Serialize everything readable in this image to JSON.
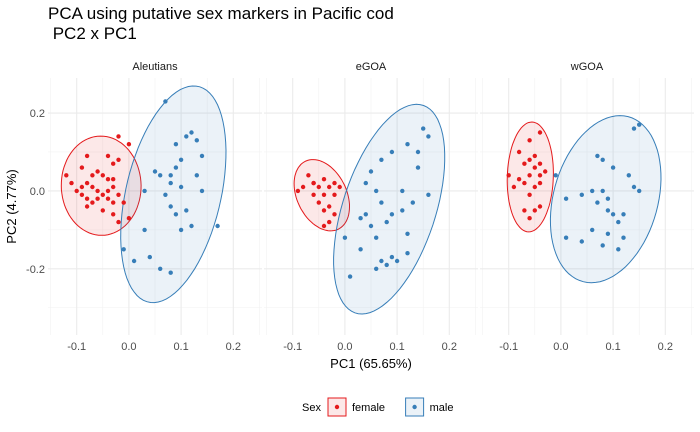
{
  "title": "PCA using putative sex markers in Pacific cod\n PC2 x PC1",
  "chart_data": {
    "type": "scatter",
    "title": "PCA using putative sex markers in Pacific cod\n PC2 x PC1",
    "xlabel": "PC1 (65.65%)",
    "ylabel": "PC2 (4.77%)",
    "xlim": [
      -0.155,
      0.255
    ],
    "ylim": [
      -0.37,
      0.29
    ],
    "x_ticks": [
      -0.1,
      0.0,
      0.1,
      0.2
    ],
    "x_tick_labels": [
      "-0.1",
      "0.0",
      "0.1",
      "0.2"
    ],
    "y_ticks": [
      -0.2,
      0.0,
      0.2
    ],
    "y_tick_labels": [
      "-0.2",
      "0.0",
      "0.2"
    ],
    "grid": true,
    "legend_position": "bottom",
    "legend_title": "Sex",
    "colors": {
      "female": "#e41a1c",
      "male": "#377eb8"
    },
    "facets": [
      {
        "label": "Aleutians",
        "series": [
          {
            "name": "female",
            "points": [
              [
                -0.02,
                0.14
              ],
              [
                -0.08,
                0.09
              ],
              [
                0.0,
                0.12
              ],
              [
                -0.04,
                0.09
              ],
              [
                -0.02,
                0.08
              ],
              [
                -0.03,
                0.07
              ],
              [
                -0.12,
                0.04
              ],
              [
                -0.09,
                0.06
              ],
              [
                -0.11,
                0.02
              ],
              [
                -0.08,
                0.02
              ],
              [
                -0.07,
                0.04
              ],
              [
                -0.06,
                0.05
              ],
              [
                -0.05,
                0.04
              ],
              [
                -0.04,
                0.03
              ],
              [
                -0.03,
                0.03
              ],
              [
                -0.1,
                0.0
              ],
              [
                -0.09,
                -0.01
              ],
              [
                -0.08,
                -0.02
              ],
              [
                -0.07,
                -0.03
              ],
              [
                -0.06,
                -0.02
              ],
              [
                -0.05,
                -0.01
              ],
              [
                -0.04,
                -0.02
              ],
              [
                -0.03,
                -0.03
              ],
              [
                -0.09,
                0.01
              ],
              [
                -0.07,
                0.01
              ],
              [
                -0.06,
                0.0
              ],
              [
                -0.04,
                0.0
              ],
              [
                -0.02,
                -0.01
              ],
              [
                -0.08,
                -0.04
              ],
              [
                -0.05,
                -0.05
              ],
              [
                -0.03,
                -0.06
              ],
              [
                -0.02,
                -0.08
              ],
              [
                0.0,
                -0.07
              ],
              [
                -0.01,
                -0.03
              ],
              [
                -0.03,
                0.01
              ]
            ]
          },
          {
            "name": "male",
            "points": [
              [
                0.07,
                0.23
              ],
              [
                0.12,
                0.15
              ],
              [
                0.11,
                0.14
              ],
              [
                0.13,
                0.13
              ],
              [
                0.09,
                0.12
              ],
              [
                0.14,
                0.09
              ],
              [
                0.1,
                0.08
              ],
              [
                0.09,
                0.06
              ],
              [
                0.05,
                0.05
              ],
              [
                0.06,
                0.04
              ],
              [
                0.08,
                0.04
              ],
              [
                0.13,
                0.04
              ],
              [
                0.08,
                0.02
              ],
              [
                0.1,
                0.01
              ],
              [
                0.14,
                0.0
              ],
              [
                0.03,
                0.0
              ],
              [
                0.07,
                -0.01
              ],
              [
                0.08,
                -0.04
              ],
              [
                0.11,
                -0.05
              ],
              [
                0.09,
                -0.06
              ],
              [
                0.12,
                -0.09
              ],
              [
                0.17,
                -0.09
              ],
              [
                0.1,
                -0.1
              ],
              [
                0.03,
                -0.1
              ],
              [
                -0.01,
                -0.15
              ],
              [
                0.04,
                -0.17
              ],
              [
                0.06,
                -0.2
              ],
              [
                0.01,
                -0.18
              ],
              [
                0.08,
                -0.21
              ]
            ]
          }
        ]
      },
      {
        "label": "eGOA",
        "series": [
          {
            "name": "female",
            "points": [
              [
                -0.07,
                0.04
              ],
              [
                -0.04,
                0.03
              ],
              [
                -0.02,
                0.02
              ],
              [
                -0.06,
                0.02
              ],
              [
                -0.05,
                0.01
              ],
              [
                -0.08,
                0.01
              ],
              [
                -0.03,
                0.01
              ],
              [
                -0.01,
                0.01
              ],
              [
                -0.06,
                -0.01
              ],
              [
                -0.04,
                -0.01
              ],
              [
                -0.02,
                -0.01
              ],
              [
                -0.09,
                0.0
              ],
              [
                -0.05,
                -0.03
              ],
              [
                -0.03,
                -0.04
              ],
              [
                -0.04,
                -0.05
              ],
              [
                -0.02,
                -0.06
              ],
              [
                -0.03,
                -0.08
              ],
              [
                -0.04,
                -0.09
              ],
              [
                -0.06,
                0.02
              ]
            ]
          },
          {
            "name": "male",
            "points": [
              [
                0.15,
                0.16
              ],
              [
                0.16,
                0.14
              ],
              [
                0.12,
                0.12
              ],
              [
                0.09,
                0.1
              ],
              [
                0.14,
                0.1
              ],
              [
                0.07,
                0.08
              ],
              [
                0.14,
                0.06
              ],
              [
                0.05,
                0.05
              ],
              [
                0.04,
                0.02
              ],
              [
                0.11,
                0.0
              ],
              [
                0.06,
                0.0
              ],
              [
                0.16,
                -0.01
              ],
              [
                0.13,
                -0.03
              ],
              [
                0.11,
                -0.05
              ],
              [
                0.07,
                -0.03
              ],
              [
                0.09,
                -0.06
              ],
              [
                0.04,
                -0.06
              ],
              [
                0.03,
                -0.07
              ],
              [
                0.05,
                -0.09
              ],
              [
                0.08,
                -0.08
              ],
              [
                0.12,
                -0.11
              ],
              [
                0.0,
                -0.12
              ],
              [
                0.06,
                -0.12
              ],
              [
                0.03,
                -0.15
              ],
              [
                0.07,
                -0.18
              ],
              [
                0.08,
                -0.19
              ],
              [
                0.09,
                -0.17
              ],
              [
                0.1,
                -0.18
              ],
              [
                0.12,
                -0.16
              ],
              [
                0.06,
                -0.2
              ],
              [
                0.01,
                -0.22
              ]
            ]
          }
        ]
      },
      {
        "label": "wGOA",
        "series": [
          {
            "name": "female",
            "points": [
              [
                -0.04,
                0.15
              ],
              [
                -0.06,
                0.13
              ],
              [
                -0.08,
                0.1
              ],
              [
                -0.05,
                0.09
              ],
              [
                -0.07,
                0.07
              ],
              [
                -0.06,
                0.08
              ],
              [
                -0.05,
                0.06
              ],
              [
                -0.03,
                0.05
              ],
              [
                -0.04,
                0.04
              ],
              [
                -0.06,
                0.04
              ],
              [
                -0.08,
                0.03
              ],
              [
                -0.1,
                0.04
              ],
              [
                -0.09,
                0.01
              ],
              [
                -0.07,
                0.02
              ],
              [
                -0.05,
                0.01
              ],
              [
                -0.04,
                0.02
              ],
              [
                -0.06,
                -0.01
              ],
              [
                -0.04,
                -0.04
              ],
              [
                -0.05,
                -0.05
              ],
              [
                -0.07,
                -0.05
              ],
              [
                -0.06,
                -0.07
              ],
              [
                -0.04,
                0.07
              ]
            ]
          },
          {
            "name": "male",
            "points": [
              [
                0.15,
                0.17
              ],
              [
                0.14,
                0.16
              ],
              [
                0.07,
                0.09
              ],
              [
                0.08,
                0.08
              ],
              [
                0.1,
                0.06
              ],
              [
                -0.01,
                0.04
              ],
              [
                0.13,
                0.04
              ],
              [
                0.14,
                0.01
              ],
              [
                0.06,
                0.0
              ],
              [
                0.04,
                -0.01
              ],
              [
                0.08,
                0.0
              ],
              [
                0.15,
                0.0
              ],
              [
                0.01,
                -0.02
              ],
              [
                0.09,
                -0.02
              ],
              [
                0.07,
                -0.03
              ],
              [
                0.09,
                -0.05
              ],
              [
                0.1,
                -0.06
              ],
              [
                0.12,
                -0.06
              ],
              [
                0.11,
                -0.08
              ],
              [
                0.06,
                -0.1
              ],
              [
                0.09,
                -0.11
              ],
              [
                0.01,
                -0.12
              ],
              [
                0.12,
                -0.12
              ],
              [
                0.04,
                -0.13
              ],
              [
                0.08,
                -0.14
              ],
              [
                0.11,
                -0.15
              ]
            ]
          }
        ]
      }
    ]
  }
}
